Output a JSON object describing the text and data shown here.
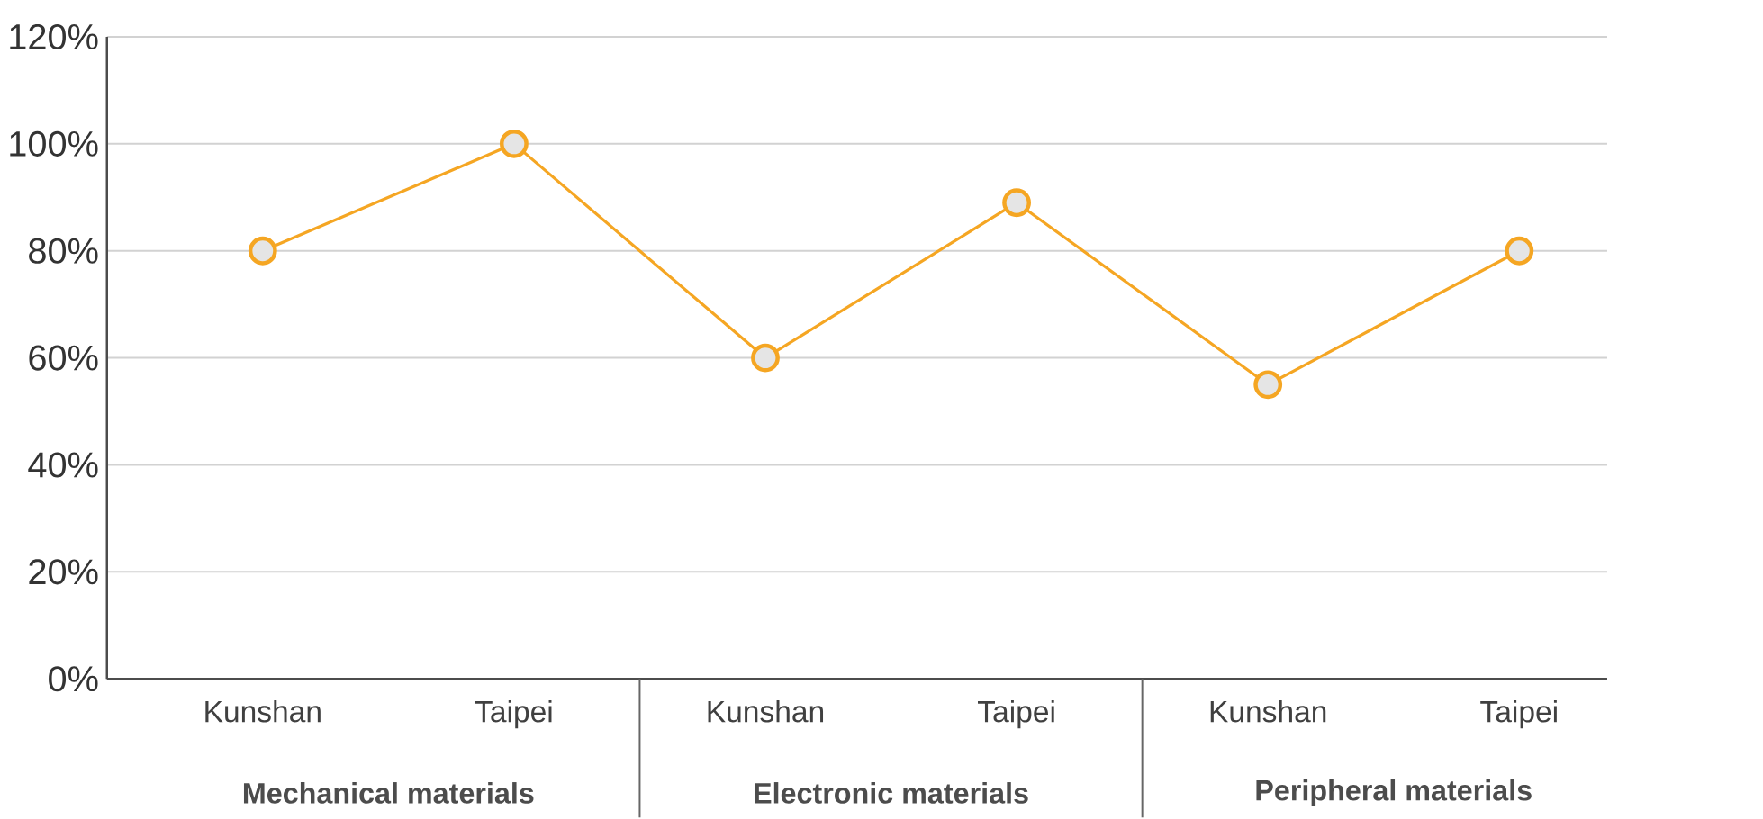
{
  "chart_data": {
    "type": "line",
    "categories": [
      "Kunshan",
      "Taipei",
      "Kunshan",
      "Taipei",
      "Kunshan",
      "Taipei"
    ],
    "values": [
      80,
      100,
      60,
      89,
      55,
      80
    ],
    "color": "#f5a623",
    "marker": "circle",
    "ylim": [
      0,
      120
    ],
    "yticks": [
      {
        "value": 0,
        "label": "0%"
      },
      {
        "value": 20,
        "label": "20%"
      },
      {
        "value": 40,
        "label": "40%"
      },
      {
        "value": 60,
        "label": "60%"
      },
      {
        "value": 80,
        "label": "80%"
      },
      {
        "value": 100,
        "label": "100%"
      },
      {
        "value": 120,
        "label": "120%"
      }
    ],
    "grid": "y",
    "annotations": [
      "Mechanical materials",
      "Electronic materials",
      "Peripheral materials"
    ]
  }
}
